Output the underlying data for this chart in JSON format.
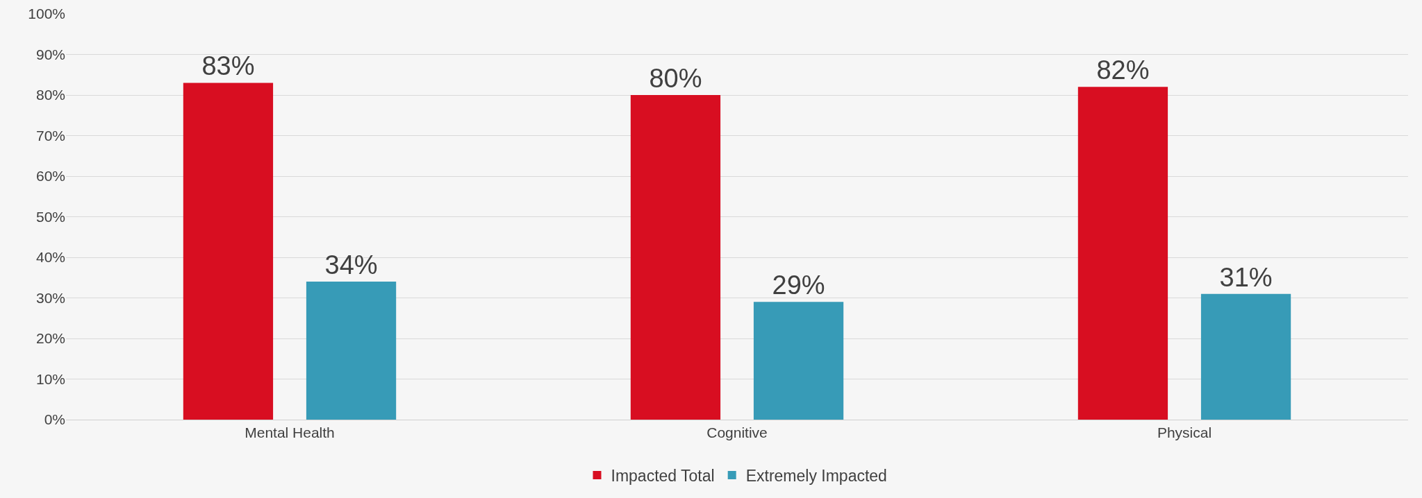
{
  "chart_data": {
    "type": "bar",
    "categories": [
      "Mental Health",
      "Cognitive",
      "Physical"
    ],
    "series": [
      {
        "name": "Impacted Total",
        "color": "#d80e21",
        "values": [
          83,
          80,
          82
        ],
        "value_labels": [
          "83%",
          "80%",
          "82%"
        ]
      },
      {
        "name": "Extremely Impacted",
        "color": "#379bb7",
        "values": [
          34,
          29,
          31
        ],
        "value_labels": [
          "34%",
          "29%",
          "31%"
        ]
      }
    ],
    "ylim": [
      0,
      100
    ],
    "yticks": [
      {
        "value": 0,
        "label": "0%"
      },
      {
        "value": 10,
        "label": "10%"
      },
      {
        "value": 20,
        "label": "20%"
      },
      {
        "value": 30,
        "label": "30%"
      },
      {
        "value": 40,
        "label": "40%"
      },
      {
        "value": 50,
        "label": "50%"
      },
      {
        "value": 60,
        "label": "60%"
      },
      {
        "value": 70,
        "label": "70%"
      },
      {
        "value": 80,
        "label": "80%"
      },
      {
        "value": 90,
        "label": "90%"
      },
      {
        "value": 100,
        "label": "100%"
      }
    ],
    "grid": "y",
    "legend": "bottom"
  }
}
